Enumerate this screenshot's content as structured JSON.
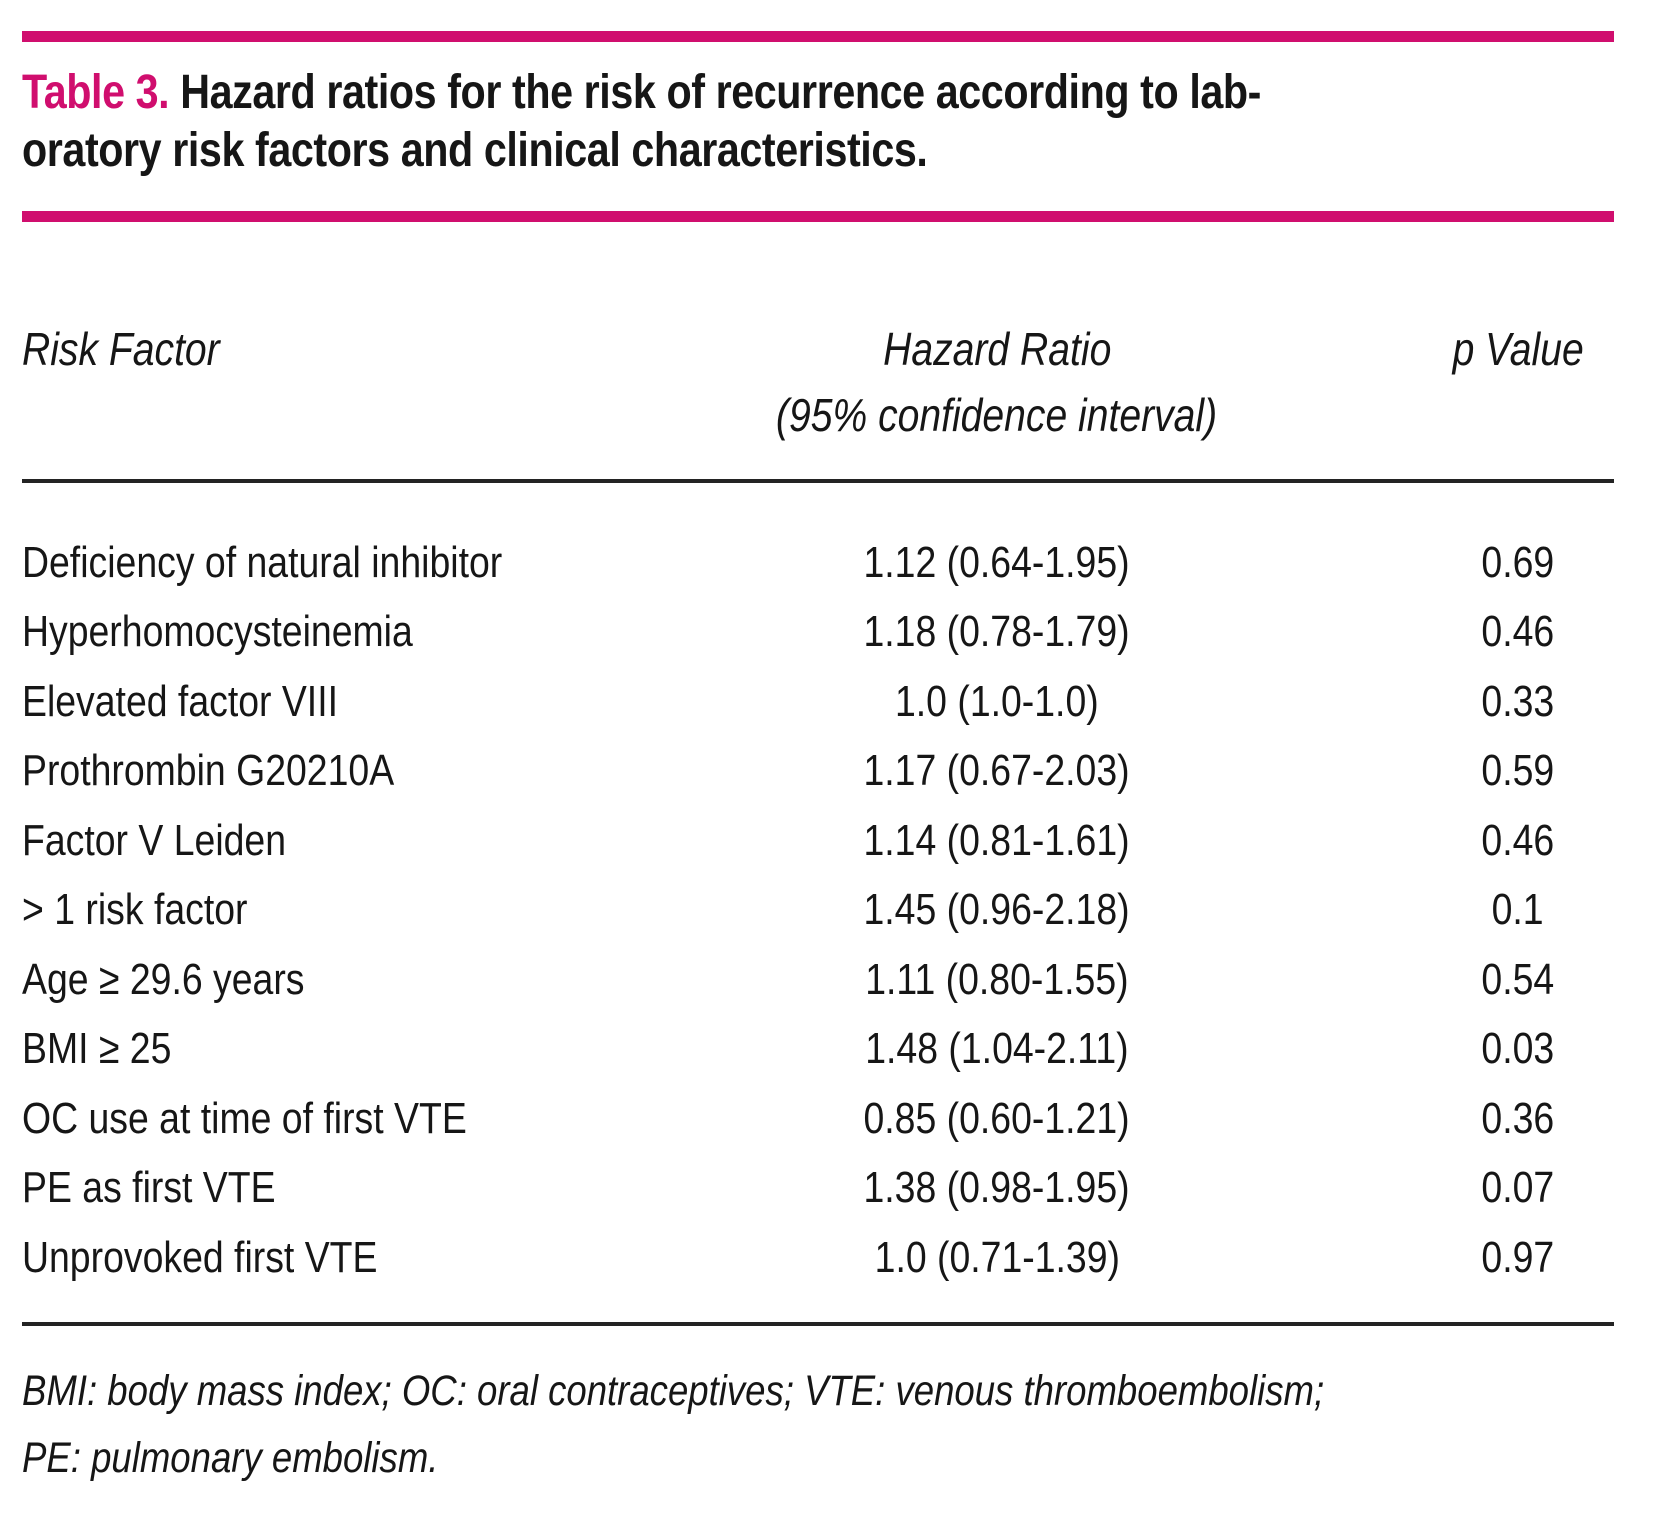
{
  "colors": {
    "accent": "#D00E6E",
    "text": "#161616",
    "rule": "#232323"
  },
  "header": {
    "label": "Table 3.",
    "title_lines": [
      "Hazard ratios for the risk of recurrence according to lab-",
      "oratory risk factors and clinical characteristics."
    ]
  },
  "columns": {
    "risk_factor": "Risk Factor",
    "hazard_ratio": "Hazard Ratio",
    "hazard_ratio_sub": "(95% confidence interval)",
    "p_value": "p Value"
  },
  "rows": [
    {
      "factor": "Deficiency of natural inhibitor",
      "hazard_ratio": "1.12 (0.64-1.95)",
      "p_value": "0.69"
    },
    {
      "factor": "Hyperhomocysteinemia",
      "hazard_ratio": "1.18 (0.78-1.79)",
      "p_value": "0.46"
    },
    {
      "factor": "Elevated factor VIII",
      "hazard_ratio": "1.0 (1.0-1.0)",
      "p_value": "0.33"
    },
    {
      "factor": "Prothrombin G20210A",
      "hazard_ratio": "1.17 (0.67-2.03)",
      "p_value": "0.59"
    },
    {
      "factor": "Factor V Leiden",
      "hazard_ratio": "1.14 (0.81-1.61)",
      "p_value": "0.46"
    },
    {
      "factor": "> 1 risk factor",
      "hazard_ratio": "1.45 (0.96-2.18)",
      "p_value": "0.1"
    },
    {
      "factor": "Age ≥ 29.6 years",
      "hazard_ratio": "1.11 (0.80-1.55)",
      "p_value": "0.54"
    },
    {
      "factor": "BMI ≥ 25",
      "hazard_ratio": "1.48 (1.04-2.11)",
      "p_value": "0.03"
    },
    {
      "factor": "OC use at time of first VTE",
      "hazard_ratio": "0.85 (0.60-1.21)",
      "p_value": "0.36"
    },
    {
      "factor": "PE as first VTE",
      "hazard_ratio": "1.38 (0.98-1.95)",
      "p_value": "0.07"
    },
    {
      "factor": "Unprovoked first VTE",
      "hazard_ratio": "1.0 (0.71-1.39)",
      "p_value": "0.97"
    }
  ],
  "footnotes": [
    "BMI: body mass index; OC: oral contraceptives; VTE: venous thromboembolism;",
    "PE: pulmonary embolism."
  ]
}
